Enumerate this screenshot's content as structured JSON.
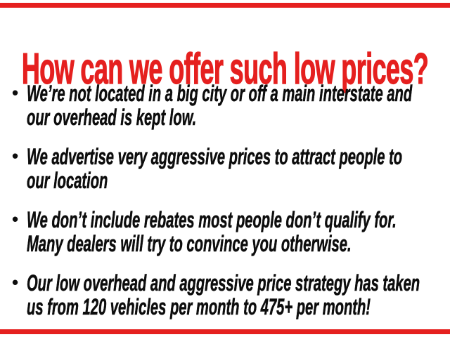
{
  "page": {
    "title": "How can we offer such low prices?",
    "bullet_glyph": "•",
    "bullets": [
      {
        "lines": [
          "We’re not located in a big city or off a main interstate and",
          "our overhead is kept low."
        ]
      },
      {
        "lines": [
          "We advertise very aggressive prices to attract people to",
          "our location"
        ]
      },
      {
        "lines": [
          "We don’t include rebates most people don’t qualify for.",
          "Many dealers will try to convince you otherwise."
        ]
      },
      {
        "lines": [
          "Our low overhead and aggressive price strategy has taken",
          "us from 120 vehicles per month to 475+ per month!"
        ]
      }
    ],
    "colors": {
      "accent_red": "#e5201f",
      "text_black": "#0d0d0d",
      "background": "#ffffff"
    }
  }
}
